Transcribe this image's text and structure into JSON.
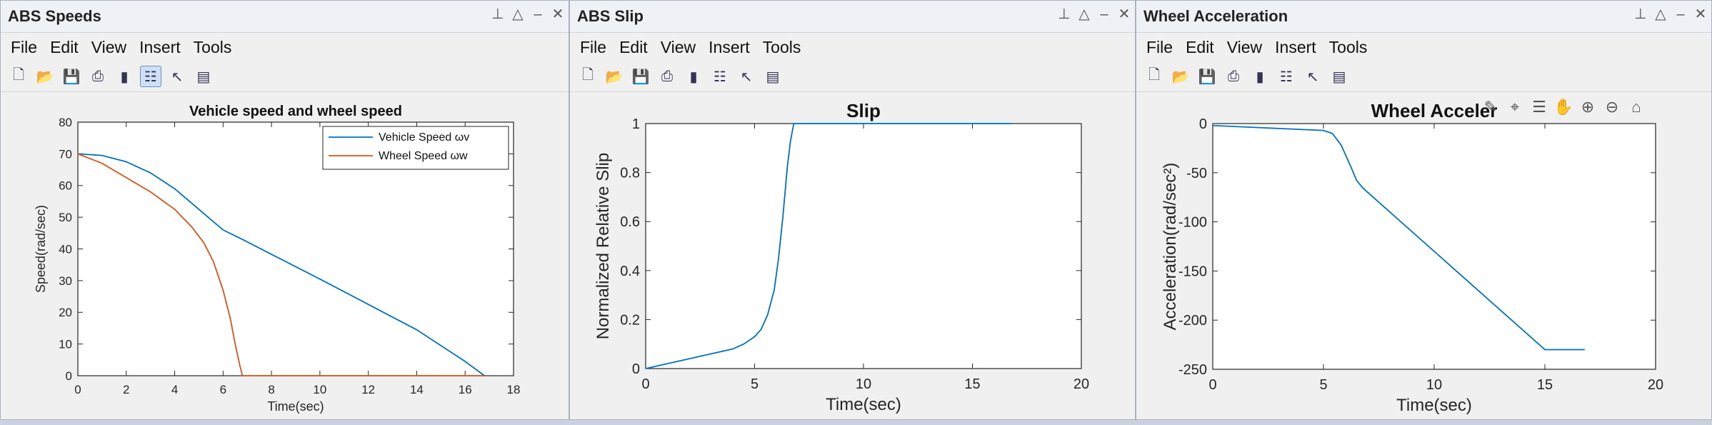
{
  "menu": [
    "File",
    "Edit",
    "View",
    "Insert",
    "Tools"
  ],
  "window_controls": [
    "📌",
    "△",
    "–",
    "✕"
  ],
  "toolbar_icons": [
    "new-figure-icon",
    "open-icon",
    "save-icon",
    "print-icon",
    "colorbar-icon",
    "legend-icon",
    "pointer-icon",
    "property-inspector-icon"
  ],
  "windows": [
    {
      "title": "ABS Speeds"
    },
    {
      "title": "ABS Slip"
    },
    {
      "title": "Wheel Acceleration"
    }
  ],
  "chart_data": [
    {
      "type": "line",
      "title": "Vehicle speed and wheel speed",
      "xlabel": "Time(sec)",
      "ylabel": "Speed(rad/sec)",
      "xlim": [
        0,
        18
      ],
      "ylim": [
        0,
        80
      ],
      "xticks": [
        "0",
        "2",
        "4",
        "6",
        "8",
        "10",
        "12",
        "14",
        "16",
        "18"
      ],
      "yticks": [
        "0",
        "10",
        "20",
        "30",
        "40",
        "50",
        "60",
        "70",
        "80"
      ],
      "legend_position": "top-right",
      "series": [
        {
          "name": "Vehicle Speed ωv",
          "color": "#0072bd",
          "x": [
            0,
            1,
            2,
            3,
            4,
            5,
            6,
            6.8,
            8,
            10,
            12,
            14,
            16,
            16.8
          ],
          "y": [
            70,
            69.5,
            67.5,
            64,
            59,
            52.5,
            46,
            43,
            38.3,
            30.5,
            22.5,
            14.5,
            4.5,
            0
          ]
        },
        {
          "name": "Wheel Speed ωw",
          "color": "#d95319",
          "x": [
            0,
            1,
            2,
            3,
            4,
            4.7,
            5.2,
            5.6,
            6,
            6.3,
            6.5,
            6.7,
            6.8,
            8,
            10,
            12,
            14,
            16,
            16.8
          ],
          "y": [
            70,
            67,
            62.5,
            58,
            52.5,
            47,
            42,
            36,
            27,
            18,
            10,
            3,
            0,
            0,
            0,
            0,
            0,
            0,
            0
          ]
        }
      ]
    },
    {
      "type": "line",
      "title": "Slip",
      "xlabel": "Time(sec)",
      "ylabel": "Normalized Relative Slip",
      "xlim": [
        0,
        20
      ],
      "ylim": [
        0,
        1
      ],
      "xticks": [
        "0",
        "5",
        "10",
        "15",
        "20"
      ],
      "yticks": [
        "0",
        "0.2",
        "0.4",
        "0.6",
        "0.8",
        "1"
      ],
      "series": [
        {
          "color": "#0072bd",
          "x": [
            0,
            1,
            2,
            3,
            4,
            4.5,
            5,
            5.3,
            5.6,
            5.9,
            6.1,
            6.3,
            6.5,
            6.65,
            6.8,
            7,
            10,
            16.8
          ],
          "y": [
            0,
            0.02,
            0.04,
            0.06,
            0.08,
            0.1,
            0.13,
            0.16,
            0.22,
            0.32,
            0.45,
            0.62,
            0.82,
            0.93,
            1,
            1,
            1,
            1
          ]
        }
      ]
    },
    {
      "type": "line",
      "title": "Wheel Acceler",
      "xlabel": "Time(sec)",
      "ylabel": "Acceleration(rad/sec²)",
      "xlim": [
        0,
        20
      ],
      "ylim": [
        -250,
        0
      ],
      "xticks": [
        "0",
        "5",
        "10",
        "15",
        "20"
      ],
      "yticks": [
        "0",
        "-50",
        "-100",
        "-150",
        "-200",
        "-250"
      ],
      "series": [
        {
          "color": "#0072bd",
          "x": [
            0,
            1,
            2,
            3,
            4,
            5,
            5.4,
            5.8,
            6.2,
            6.5,
            6.8,
            10,
            15,
            16.8
          ],
          "y": [
            -2,
            -3,
            -4,
            -5,
            -6,
            -7,
            -10,
            -22,
            -42,
            -58,
            -66,
            -130,
            -230,
            -230
          ]
        }
      ]
    }
  ],
  "axes_toolbar_icons": [
    "brush-icon",
    "data-cursor-icon",
    "legend-toggle-icon",
    "pan-icon",
    "zoom-in-icon",
    "zoom-out-icon",
    "home-icon"
  ]
}
